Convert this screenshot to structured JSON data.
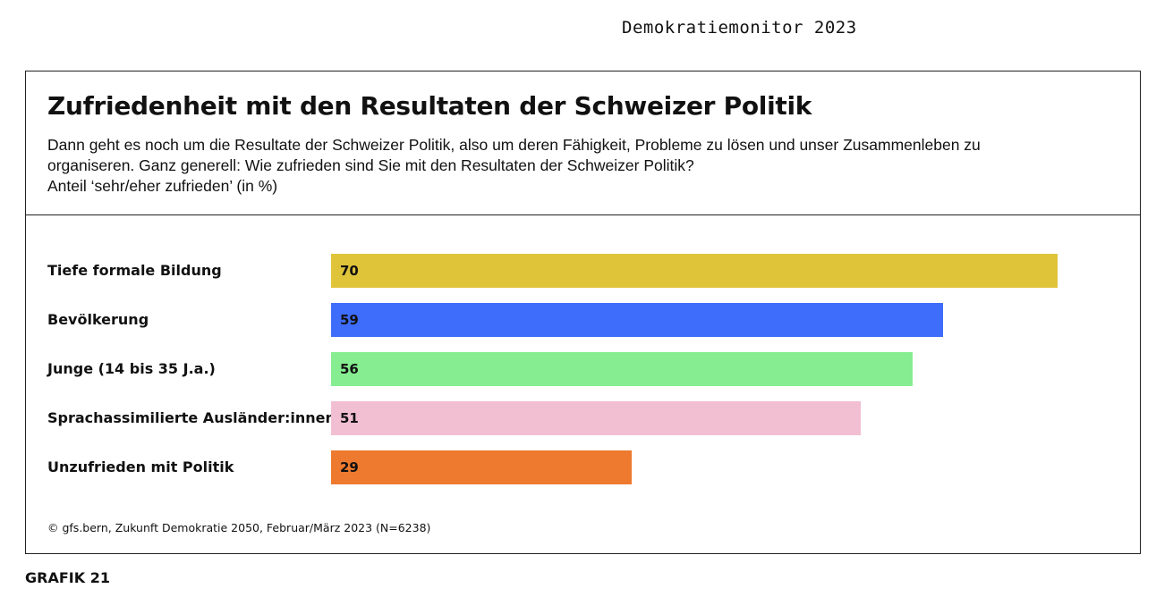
{
  "header": {
    "title": "Demokratiemonitor 2023"
  },
  "chart_data": {
    "type": "bar",
    "orientation": "horizontal",
    "title": "Zufriedenheit mit den Resultaten der Schweizer Politik",
    "subtitle": "Dann geht es noch um die Resultate der Schweizer Politik, also um deren Fähigkeit, Probleme zu lösen und unser Zusammenleben zu organiseren. Ganz generell: Wie zufrieden sind Sie mit den Resultaten der Schweizer Politik?",
    "unit_label": "Anteil ‘sehr/eher zufrieden’ (in %)",
    "categories": [
      "Tiefe formale Bildung",
      "Bevölkerung",
      "Junge (14 bis 35 J.a.)",
      "Sprachassimilierte Ausländer:innen",
      "Unzufrieden mit Politik"
    ],
    "values": [
      70,
      59,
      56,
      51,
      29
    ],
    "colors": [
      "#dfc43a",
      "#3e6cfb",
      "#86ed90",
      "#f2bed2",
      "#ed7a2f"
    ],
    "xlim": [
      0,
      100
    ],
    "source": "© gfs.bern, Zukunft Demokratie 2050, Februar/März 2023 (N=6238)"
  },
  "footer": {
    "figure_label": "GRAFIK 21"
  }
}
